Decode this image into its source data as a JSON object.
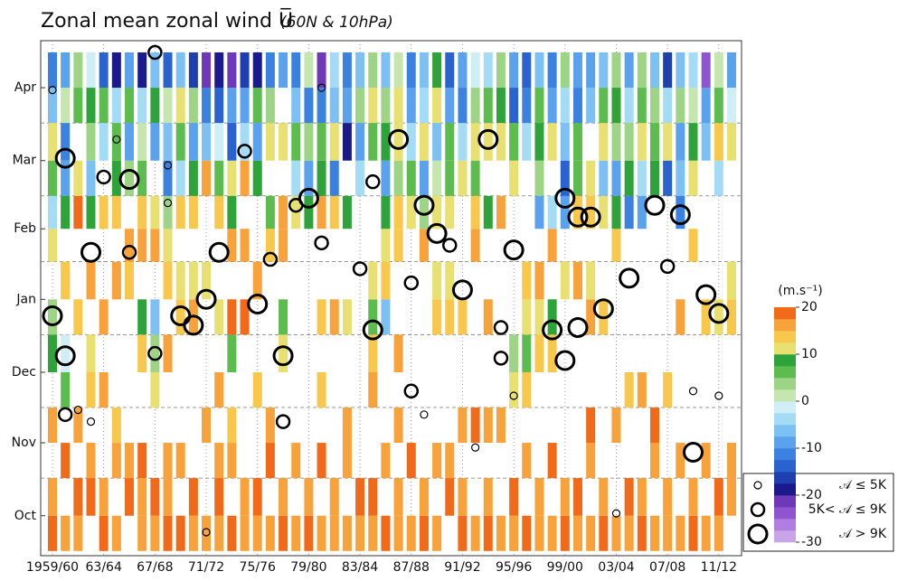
{
  "chart_data": {
    "type": "winter-columns",
    "title": "Zonal mean zonal wind U̅",
    "subtitle": "(60N & 10hPa)",
    "categories": [
      "1959/60",
      null,
      null,
      null,
      "63/64",
      null,
      null,
      null,
      "67/68",
      null,
      null,
      null,
      "71/72",
      null,
      null,
      null,
      "75/76",
      null,
      null,
      null,
      "79/80",
      null,
      null,
      null,
      "83/84",
      null,
      null,
      null,
      "87/88",
      null,
      null,
      null,
      "91/92",
      null,
      null,
      null,
      "95/96",
      null,
      null,
      null,
      "99/00",
      null,
      null,
      null,
      "03/04",
      null,
      null,
      null,
      "07/08",
      null,
      null,
      null,
      "11/12",
      null
    ],
    "ylim": [
      -2,
      217
    ],
    "yticks": [
      {
        "value": 15,
        "label": "Oct"
      },
      {
        "value": 46,
        "label": "Nov"
      },
      {
        "value": 76,
        "label": "Dec"
      },
      {
        "value": 107,
        "label": "Jan"
      },
      {
        "value": 137,
        "label": "Feb"
      },
      {
        "value": 166,
        "label": "Mar"
      },
      {
        "value": 197,
        "label": "Apr"
      }
    ],
    "month_bounds": [
      31,
      61,
      92,
      123,
      151,
      182
    ],
    "bins": [
      0,
      15,
      31,
      46,
      61,
      76,
      92,
      107,
      123,
      137,
      151,
      166,
      182,
      197,
      212
    ],
    "z": [
      [
        18,
        17,
        null,
        16,
        null,
        8,
        3,
        null,
        12,
        -4,
        5,
        10,
        -6,
        -12
      ],
      [
        17,
        null,
        18,
        null,
        6,
        -2,
        null,
        14,
        null,
        8,
        -8,
        -12,
        2,
        -10
      ],
      [
        16,
        18,
        null,
        17,
        null,
        null,
        14,
        null,
        null,
        18,
        12,
        null,
        6,
        4
      ],
      [
        null,
        19,
        16,
        null,
        14,
        12,
        null,
        15,
        null,
        9,
        -6,
        4,
        8,
        -2
      ],
      [
        18,
        17,
        null,
        null,
        15,
        null,
        16,
        null,
        null,
        13,
        null,
        -5,
        6,
        -14
      ],
      [
        17,
        null,
        15,
        14,
        null,
        null,
        null,
        16,
        null,
        14,
        8,
        6,
        -4,
        -18
      ],
      [
        null,
        18,
        16,
        null,
        null,
        null,
        null,
        14,
        15,
        null,
        4,
        -10,
        6,
        -8
      ],
      [
        16,
        17,
        18,
        null,
        null,
        14,
        8,
        null,
        15,
        14,
        6,
        2,
        -3,
        -20
      ],
      [
        17,
        18,
        null,
        null,
        12,
        4,
        -6,
        null,
        16,
        11,
        null,
        -8,
        8,
        -6
      ],
      [
        18,
        16,
        17,
        null,
        null,
        16,
        null,
        13,
        12,
        4,
        -12,
        -6,
        2,
        -14
      ],
      [
        18,
        null,
        17,
        null,
        null,
        null,
        14,
        12,
        null,
        14,
        -4,
        5,
        10,
        -6
      ],
      [
        17,
        18,
        null,
        null,
        null,
        null,
        16,
        10,
        null,
        14,
        8,
        -10,
        4,
        -16
      ],
      [
        16,
        null,
        null,
        15,
        null,
        null,
        null,
        12,
        null,
        null,
        15,
        -6,
        -12,
        -22
      ],
      [
        17,
        18,
        16,
        null,
        15,
        null,
        12,
        null,
        null,
        14,
        6,
        -2,
        -14,
        -18
      ],
      [
        18,
        null,
        15,
        14,
        null,
        6,
        18,
        null,
        16,
        8,
        10,
        -14,
        -8,
        -22
      ],
      [
        16,
        17,
        null,
        null,
        null,
        null,
        18,
        null,
        16,
        null,
        15,
        -4,
        -10,
        -16
      ],
      [
        17,
        18,
        null,
        null,
        14,
        null,
        null,
        16,
        null,
        null,
        8,
        -10,
        6,
        -20
      ],
      [
        16,
        null,
        18,
        16,
        null,
        null,
        null,
        null,
        14,
        6,
        null,
        12,
        4,
        -12
      ],
      [
        18,
        17,
        null,
        null,
        null,
        12,
        5,
        null,
        16,
        17,
        null,
        10,
        null,
        -10
      ],
      [
        17,
        null,
        16,
        null,
        null,
        null,
        null,
        null,
        null,
        10,
        -4,
        6,
        -6,
        -12
      ],
      [
        18,
        16,
        null,
        null,
        null,
        null,
        null,
        null,
        null,
        8,
        -8,
        4,
        -12,
        2
      ],
      [
        17,
        null,
        18,
        null,
        14,
        null,
        14,
        null,
        null,
        16,
        8,
        5,
        -12,
        -22
      ],
      [
        16,
        17,
        null,
        null,
        null,
        null,
        16,
        null,
        null,
        14,
        -12,
        12,
        -6,
        -4
      ],
      [
        17,
        null,
        15,
        16,
        null,
        null,
        12,
        null,
        null,
        8,
        null,
        -18,
        -8,
        -12
      ],
      [
        16,
        18,
        null,
        null,
        null,
        null,
        null,
        null,
        null,
        null,
        -4,
        -10,
        4,
        -6
      ],
      [
        17,
        18,
        null,
        null,
        17,
        14,
        6,
        12,
        null,
        null,
        null,
        6,
        12,
        4
      ],
      [
        18,
        null,
        16,
        null,
        null,
        null,
        -6,
        14,
        10,
        8,
        -10,
        8,
        4,
        -6
      ],
      [
        17,
        16,
        null,
        16,
        null,
        16,
        null,
        null,
        14,
        14,
        4,
        10,
        12,
        2
      ],
      [
        16,
        null,
        18,
        null,
        null,
        null,
        null,
        null,
        null,
        12,
        6,
        -4,
        -8,
        -12
      ],
      [
        18,
        17,
        null,
        null,
        null,
        null,
        null,
        null,
        16,
        4,
        -8,
        10,
        -4,
        -6
      ],
      [
        17,
        null,
        16,
        null,
        null,
        null,
        14,
        10,
        null,
        10,
        2,
        -6,
        12,
        8
      ],
      [
        null,
        18,
        16,
        null,
        null,
        null,
        14,
        12,
        null,
        12,
        6,
        6,
        -8,
        -14
      ],
      [
        18,
        17,
        null,
        16,
        null,
        null,
        14,
        null,
        null,
        null,
        12,
        -4,
        -12,
        -8
      ],
      [
        17,
        null,
        null,
        18,
        null,
        null,
        null,
        null,
        16,
        14,
        6,
        10,
        4,
        -2
      ],
      [
        18,
        16,
        null,
        16,
        null,
        null,
        16,
        null,
        null,
        8,
        null,
        10,
        6,
        -4
      ],
      [
        17,
        null,
        null,
        16,
        null,
        null,
        null,
        null,
        null,
        16,
        null,
        12,
        8,
        4
      ],
      [
        16,
        18,
        null,
        null,
        10,
        4,
        null,
        null,
        null,
        null,
        12,
        6,
        -14,
        -10
      ],
      [
        18,
        null,
        17,
        null,
        14,
        6,
        10,
        14,
        null,
        null,
        null,
        -4,
        -12,
        -14
      ],
      [
        16,
        17,
        null,
        null,
        null,
        14,
        10,
        16,
        null,
        -8,
        4,
        8,
        6,
        -6
      ],
      [
        17,
        null,
        18,
        null,
        null,
        14,
        8,
        null,
        16,
        -4,
        null,
        10,
        -8,
        -12
      ],
      [
        18,
        16,
        null,
        null,
        null,
        null,
        null,
        12,
        null,
        -10,
        -14,
        -6,
        -4,
        4
      ],
      [
        17,
        18,
        null,
        null,
        null,
        null,
        null,
        16,
        null,
        14,
        6,
        6,
        -12,
        -8
      ],
      [
        16,
        null,
        17,
        18,
        null,
        null,
        15,
        10,
        null,
        14,
        10,
        null,
        -6,
        -10
      ],
      [
        18,
        17,
        null,
        null,
        null,
        null,
        14,
        null,
        null,
        12,
        -6,
        12,
        6,
        -6
      ],
      [
        17,
        null,
        null,
        16,
        null,
        null,
        null,
        null,
        14,
        8,
        -10,
        4,
        8,
        4
      ],
      [
        16,
        18,
        null,
        null,
        14,
        null,
        null,
        null,
        null,
        -12,
        8,
        4,
        -4,
        -8
      ],
      [
        18,
        17,
        null,
        null,
        16,
        null,
        null,
        null,
        null,
        -10,
        -4,
        10,
        6,
        4
      ],
      [
        17,
        null,
        16,
        18,
        null,
        null,
        null,
        null,
        null,
        null,
        8,
        6,
        4,
        -6
      ],
      [
        16,
        17,
        null,
        null,
        14,
        null,
        null,
        null,
        null,
        null,
        -14,
        12,
        -4,
        -16
      ],
      [
        17,
        null,
        16,
        null,
        null,
        null,
        16,
        null,
        null,
        -12,
        -6,
        -8,
        4,
        -6
      ],
      [
        18,
        17,
        null,
        null,
        null,
        null,
        null,
        null,
        14,
        null,
        12,
        8,
        2,
        -4
      ],
      [
        16,
        null,
        17,
        null,
        null,
        null,
        14,
        null,
        null,
        null,
        null,
        -6,
        -10,
        -24
      ],
      [
        17,
        18,
        null,
        null,
        null,
        null,
        12,
        null,
        null,
        null,
        -4,
        14,
        6,
        2
      ],
      [
        null,
        16,
        17,
        null,
        null,
        null,
        14,
        12,
        null,
        null,
        null,
        10,
        -2,
        -8
      ]
    ],
    "events": {
      "winter": [
        0,
        0,
        1,
        1,
        1,
        4,
        5,
        6,
        6,
        3,
        8,
        8,
        9,
        10,
        11,
        9,
        12,
        13,
        15,
        16,
        17,
        18,
        18,
        19,
        20,
        21,
        24,
        25,
        25,
        27,
        28,
        28,
        29,
        30,
        31,
        32,
        34,
        35,
        35,
        36,
        39,
        40,
        40,
        41,
        41,
        42,
        43,
        45,
        47,
        48,
        49,
        50,
        51,
        52,
        2,
        3,
        12,
        29,
        36,
        44,
        50,
        52,
        33,
        21
      ],
      "day": [
        100,
        196,
        167,
        83,
        58,
        159,
        175,
        158,
        127,
        127,
        84,
        212,
        164,
        100,
        96,
        148,
        107,
        127,
        170,
        105,
        124,
        83,
        55,
        147,
        150,
        131,
        120,
        157,
        94,
        175,
        114,
        68,
        147,
        135,
        130,
        111,
        175,
        95,
        82,
        128,
        94,
        150,
        81,
        142,
        95,
        142,
        103,
        116,
        147,
        121,
        143,
        42,
        109,
        101,
        60,
        55,
        8,
        58,
        66,
        16,
        68,
        66,
        44,
        197
      ],
      "class": [
        2,
        0,
        2,
        2,
        1,
        1,
        0,
        2,
        1,
        2,
        1,
        1,
        0,
        2,
        2,
        0,
        2,
        2,
        1,
        2,
        1,
        2,
        1,
        1,
        2,
        1,
        1,
        1,
        2,
        2,
        1,
        1,
        2,
        2,
        1,
        2,
        2,
        1,
        1,
        2,
        2,
        2,
        2,
        2,
        2,
        2,
        2,
        2,
        2,
        1,
        2,
        2,
        2,
        2,
        0,
        0,
        0,
        0,
        0,
        0,
        0,
        0,
        0,
        0
      ]
    },
    "colorbar": {
      "label": "(m.s⁻¹)",
      "clim": [
        -30,
        20
      ],
      "ticks": [
        20,
        10,
        0,
        -10,
        -20,
        -30
      ],
      "colors": [
        "#c9a5e8",
        "#b07ee0",
        "#8f55d0",
        "#6e38b8",
        "#1a1a8c",
        "#1f3fb0",
        "#2a62d0",
        "#3b82e0",
        "#5aa2ee",
        "#7cc0f4",
        "#a4dcf6",
        "#cfeef6",
        "#c6e6b0",
        "#9ed485",
        "#5cbd4e",
        "#2ea33a",
        "#e8e070",
        "#f8c84c",
        "#f7a23a",
        "#f06a1a"
      ]
    },
    "legend": [
      "𝒜 ≤ 5K",
      "5K< 𝒜 ≤ 9K",
      "𝒜 > 9K"
    ]
  }
}
